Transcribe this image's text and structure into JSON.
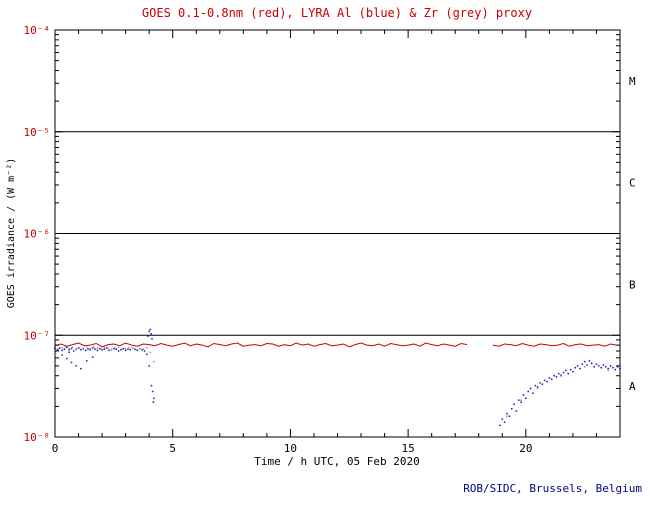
{
  "footer": {
    "text": "ROB/SIDC, Brussels, Belgium"
  },
  "chart_data": {
    "type": "scatter",
    "title": "GOES 0.1-0.8nm (red), LYRA Al (blue) & Zr (grey) proxy",
    "xlabel": "Time / h UTC, 05 Feb 2020",
    "ylabel": "GOES irradiance / (W m⁻²)",
    "xlim": [
      0,
      24
    ],
    "ylog10_lim": [
      -8,
      -4
    ],
    "x_minor_step": 1,
    "x_ticks": [
      {
        "v": 0,
        "label": "0"
      },
      {
        "v": 5,
        "label": "5"
      },
      {
        "v": 10,
        "label": "10"
      },
      {
        "v": 15,
        "label": "15"
      },
      {
        "v": 20,
        "label": "20"
      }
    ],
    "y_ticks": [
      {
        "exp": -8,
        "label": "10⁻⁸"
      },
      {
        "exp": -7,
        "label": "10⁻⁷"
      },
      {
        "exp": -6,
        "label": "10⁻⁶"
      },
      {
        "exp": -5,
        "label": "10⁻⁵"
      },
      {
        "exp": -4,
        "label": "10⁻⁴"
      }
    ],
    "hlines_exp": [
      -7,
      -6,
      -5
    ],
    "class_labels": [
      {
        "label": "M",
        "exp_mid": -4.5
      },
      {
        "label": "C",
        "exp_mid": -5.5
      },
      {
        "label": "B",
        "exp_mid": -6.5
      },
      {
        "label": "A",
        "exp_mid": -7.5
      }
    ],
    "grid": false,
    "legend_position": "in-title",
    "colors": {
      "goes_red": "#cc0000",
      "lyra_al_blue": "#2222bb",
      "lyra_zr_grey": "#999999",
      "axis_black": "#000000",
      "y_tick_label_red": "#cc0000",
      "footer_navy": "#000080"
    },
    "value_unit": 1e-08,
    "unit_note": "series values are in units of 1e-8 W m-2 (log y-axis 1e-8 .. 1e-4)",
    "series": [
      {
        "name": "GOES 0.1-0.8nm",
        "color": "#cc0000",
        "style": "line",
        "segments": [
          {
            "x_start": 0,
            "x_step": 0.25,
            "values": [
              7.9,
              8.2,
              7.8,
              8.1,
              8.4,
              7.9,
              8.0,
              8.3,
              7.7,
              8.1,
              8.2,
              7.9,
              8.4,
              8.0,
              7.8,
              8.2,
              8.1,
              7.9,
              8.3,
              8.0,
              7.8,
              8.1,
              8.4,
              7.9,
              8.2,
              8.0,
              7.7,
              8.3,
              8.1,
              7.9,
              8.2,
              8.4,
              7.8,
              8.0,
              8.1,
              7.9,
              8.3,
              8.2,
              7.8,
              8.1,
              7.9,
              8.4,
              8.0,
              8.2,
              7.8,
              8.1,
              8.3,
              7.9,
              8.0,
              8.2,
              7.7,
              8.1,
              8.4,
              8.0,
              7.9,
              8.2,
              7.8,
              8.3,
              8.1,
              7.9,
              8.0,
              8.2,
              7.8,
              8.4,
              8.1,
              7.9,
              8.2,
              8.0,
              7.8,
              8.3,
              8.1
            ]
          },
          {
            "x_start": 18.6,
            "x_step": 0.25,
            "values": [
              8.0,
              7.8,
              8.2,
              8.1,
              7.9,
              8.3,
              8.0,
              7.8,
              8.2,
              8.1,
              7.9,
              8.0,
              8.3,
              7.8,
              8.1,
              8.2,
              7.9,
              8.0,
              8.1,
              7.8,
              8.2,
              8.0
            ]
          }
        ]
      },
      {
        "name": "LYRA Al proxy",
        "color": "#2222bb",
        "style": "dots",
        "segments": [
          {
            "x_start": 0,
            "x_step": 0.1,
            "values": [
              7.4,
              7.2,
              7.5,
              7.1,
              7.3,
              7.6,
              7.2,
              7.4,
              7.0,
              7.3,
              7.5,
              7.2,
              7.4,
              7.1,
              7.3,
              7.2,
              7.5,
              7.3,
              7.1,
              7.4,
              7.2,
              7.3,
              7.5,
              7.1,
              7.2,
              7.4,
              7.3,
              7.0,
              7.2,
              7.4,
              7.1,
              7.3,
              7.2,
              7.5,
              7.3,
              7.1,
              7.4,
              7.2,
              7.0,
              6.5,
              5.0,
              3.2,
              2.4
            ]
          },
          {
            "x_start": 18.9,
            "x_step": 0.1,
            "values": [
              1.3,
              1.5,
              1.4,
              1.7,
              1.6,
              1.9,
              2.1,
              1.8,
              2.3,
              2.2,
              2.6,
              2.4,
              2.8,
              3.0,
              2.7,
              3.2,
              3.1,
              3.4,
              3.3,
              3.6,
              3.5,
              3.8,
              3.7,
              4.0,
              3.9,
              4.2,
              4.0,
              4.3,
              4.5,
              4.2,
              4.6,
              4.4,
              4.8,
              5.0,
              4.7,
              5.2,
              5.5,
              5.1,
              5.6,
              5.3,
              4.9,
              5.2,
              5.0,
              4.8,
              5.1,
              4.9,
              4.7,
              5.0,
              4.8,
              4.6,
              4.9,
              4.7
            ]
          },
          {
            "points": [
              [
                3.95,
                9.8
              ],
              [
                4.0,
                10.9
              ],
              [
                4.05,
                11.4
              ],
              [
                4.08,
                10.3
              ],
              [
                4.12,
                9.2
              ],
              [
                4.15,
                2.8
              ],
              [
                4.18,
                2.2
              ],
              [
                0.3,
                6.4
              ],
              [
                0.5,
                5.9
              ],
              [
                0.7,
                5.4
              ],
              [
                0.9,
                5.0
              ],
              [
                1.1,
                4.7
              ],
              [
                1.35,
                5.6
              ],
              [
                0.6,
                6.8
              ],
              [
                1.6,
                6.1
              ]
            ]
          }
        ]
      },
      {
        "name": "LYRA Zr proxy",
        "color": "#999999",
        "style": "dots",
        "segments": [
          {
            "x_start": 0,
            "x_step": 0.15,
            "values": [
              7.6,
              7.3,
              7.5,
              7.7,
              7.4,
              7.6,
              7.2,
              7.5,
              7.3,
              7.6,
              7.4,
              7.7,
              7.5,
              7.3,
              7.6,
              7.4,
              7.2,
              7.5,
              7.6,
              7.3,
              7.4,
              7.6,
              7.5,
              7.2,
              7.4,
              7.3,
              7.5,
              6.8,
              5.5
            ]
          },
          {
            "points": [
              [
                19.2,
                1.6
              ],
              [
                19.8,
                2.3
              ],
              [
                20.5,
                3.0
              ],
              [
                21.5,
                4.1
              ],
              [
                22.5,
                4.9
              ],
              [
                23.5,
                4.5
              ]
            ]
          }
        ]
      }
    ]
  }
}
